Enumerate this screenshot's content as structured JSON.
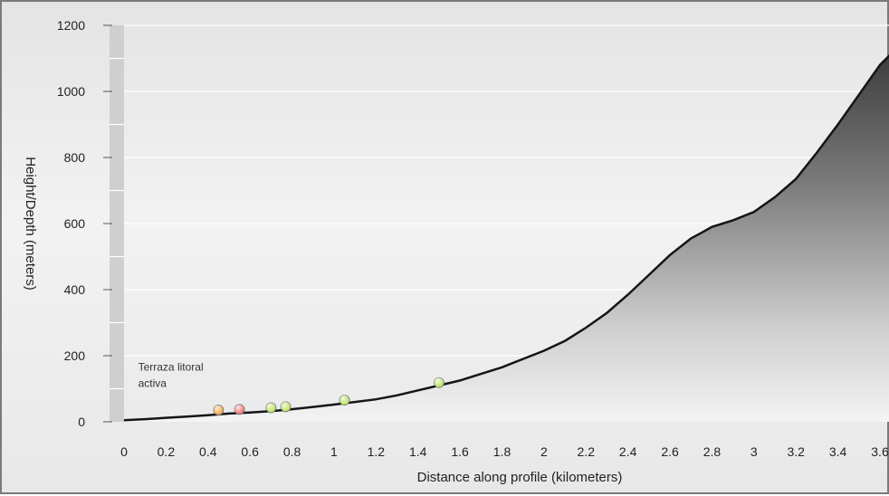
{
  "chart_data": {
    "type": "area",
    "title": "",
    "xlabel": "Distance along profile (kilometers)",
    "ylabel": "Height/Depth (meters)",
    "xlim": [
      0,
      3.6
    ],
    "ylim": [
      0,
      1200
    ],
    "x_ticks": [
      0,
      0.2,
      0.4,
      0.6,
      0.8,
      1,
      1.2,
      1.4,
      1.6,
      1.8,
      2,
      2.2,
      2.4,
      2.6,
      2.8,
      3,
      3.2,
      3.4,
      3.6
    ],
    "x_tick_labels": [
      "0",
      "0.2",
      "0.4",
      "0.6",
      "0.8",
      "1",
      "1.2",
      "1.4",
      "1.6",
      "1.8",
      "2",
      "2.2",
      "2.4",
      "2.6",
      "2.8",
      "3",
      "3.2",
      "3.4",
      "3.6"
    ],
    "y_ticks": [
      0,
      200,
      400,
      600,
      800,
      1000,
      1200
    ],
    "y_tick_labels": [
      "0",
      "200",
      "400",
      "600",
      "800",
      "1000",
      "1200"
    ],
    "grid": true,
    "legend": "none",
    "profile": {
      "x": [
        0,
        0.1,
        0.2,
        0.3,
        0.4,
        0.5,
        0.6,
        0.7,
        0.8,
        0.9,
        1.0,
        1.1,
        1.2,
        1.3,
        1.4,
        1.5,
        1.6,
        1.7,
        1.8,
        1.9,
        2.0,
        2.1,
        2.2,
        2.3,
        2.4,
        2.5,
        2.6,
        2.7,
        2.75,
        2.8,
        2.9,
        3.0,
        3.1,
        3.2,
        3.3,
        3.4,
        3.5,
        3.6
      ],
      "y": [
        5,
        8,
        12,
        16,
        20,
        25,
        28,
        32,
        38,
        45,
        52,
        60,
        68,
        80,
        95,
        110,
        125,
        145,
        165,
        190,
        215,
        245,
        285,
        330,
        385,
        445,
        505,
        555,
        572,
        590,
        610,
        635,
        680,
        735,
        815,
        900,
        990,
        1080
      ]
    },
    "markers": [
      {
        "x": 0.45,
        "y": 30,
        "color": "#f2a23a"
      },
      {
        "x": 0.55,
        "y": 32,
        "color": "#ef6e6e"
      },
      {
        "x": 0.7,
        "y": 37,
        "color": "#b7e05a"
      },
      {
        "x": 0.77,
        "y": 40,
        "color": "#b7e05a"
      },
      {
        "x": 1.05,
        "y": 60,
        "color": "#b7e05a"
      },
      {
        "x": 1.5,
        "y": 113,
        "color": "#b7e05a"
      }
    ],
    "annotations": [
      {
        "text": "Terraza  litoral",
        "x": 0.05,
        "y": 155
      },
      {
        "text": "activa",
        "x": 0.05,
        "y": 105
      }
    ]
  }
}
